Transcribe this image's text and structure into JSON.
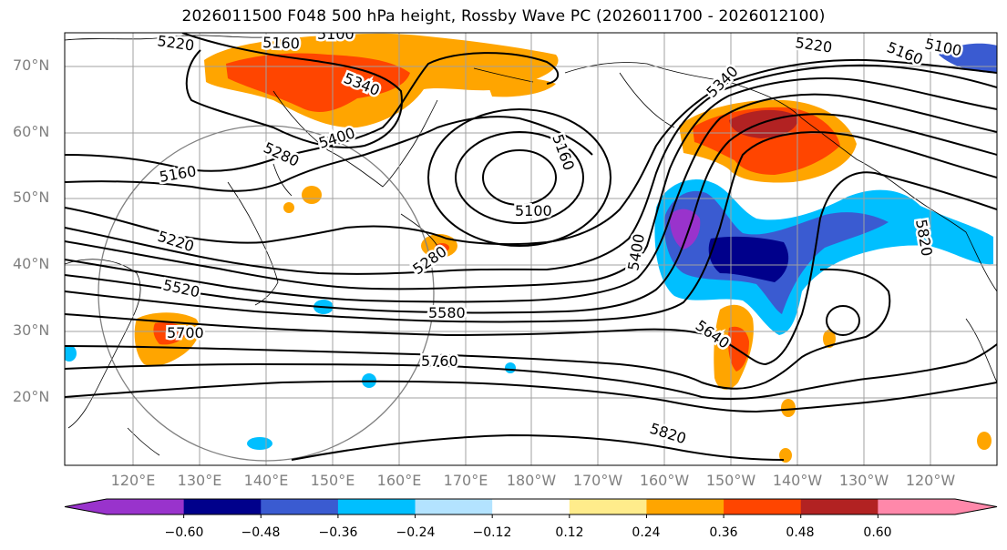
{
  "title": "2026011500 F048 500 hPa height, Rossby Wave PC (2026011700 - 2026012100)",
  "lat_labels": [
    "70°N",
    "60°N",
    "50°N",
    "40°N",
    "30°N",
    "20°N"
  ],
  "lon_labels": [
    "120°E",
    "130°E",
    "140°E",
    "150°E",
    "160°E",
    "170°E",
    "180°W",
    "170°W",
    "160°W",
    "150°W",
    "140°W",
    "130°W",
    "120°W"
  ],
  "contour_labels": [
    "5220",
    "5160",
    "5100",
    "5340",
    "5400",
    "5280",
    "5160",
    "5220",
    "5520",
    "5700",
    "5100",
    "5160",
    "5220",
    "5160",
    "5100",
    "5340",
    "5280",
    "5400",
    "5580",
    "5640",
    "5760",
    "5820",
    "5820"
  ],
  "colorbar": {
    "colors": [
      "#9933cc",
      "#00008b",
      "#3a5bd1",
      "#00bfff",
      "#b3e3ff",
      "#ffffff",
      "#ffec8b",
      "#ffa500",
      "#ff4500",
      "#b22222",
      "#ff88aa"
    ],
    "tick_labels": [
      "−0.60",
      "−0.48",
      "−0.36",
      "−0.24",
      "−0.12",
      "0.12",
      "0.24",
      "0.36",
      "0.48",
      "0.60"
    ]
  }
}
